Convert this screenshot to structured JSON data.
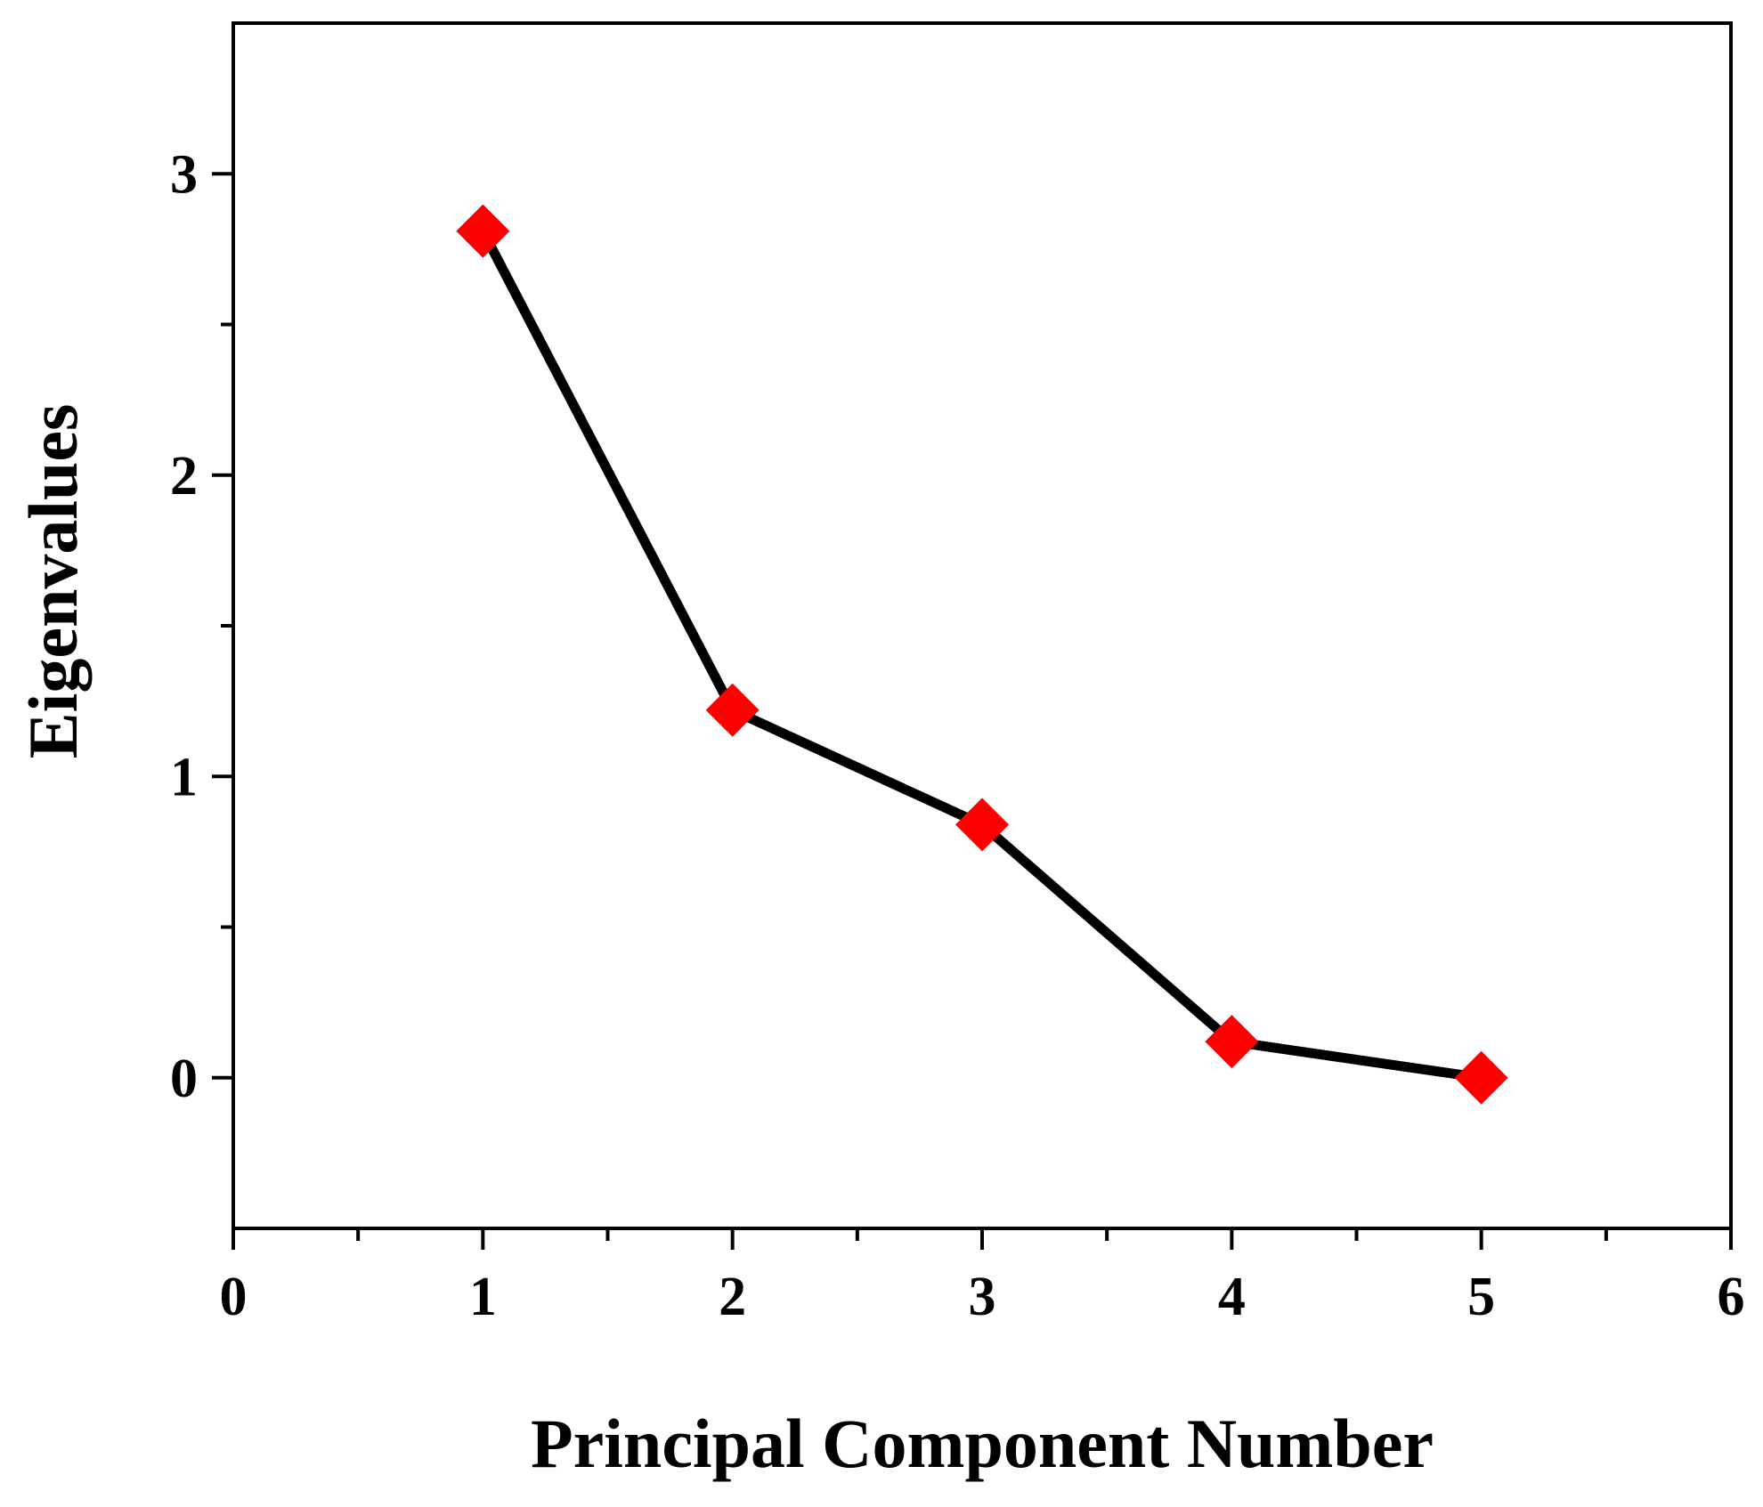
{
  "chart_data": {
    "type": "line",
    "title": "",
    "xlabel": "Principal Component Number",
    "ylabel": "Eigenvalues",
    "xlim": [
      0,
      6
    ],
    "ylim": [
      -0.5,
      3.5
    ],
    "x_ticks": [
      0,
      1,
      2,
      3,
      4,
      5,
      6
    ],
    "y_ticks": [
      0,
      1,
      2,
      3
    ],
    "grid": false,
    "legend": "none",
    "series": [
      {
        "x": [
          1,
          2,
          3,
          4,
          5
        ],
        "values": [
          2.81,
          1.22,
          0.84,
          0.12,
          0.0
        ],
        "line_color": "#000000",
        "marker": "diamond",
        "marker_color": "#ff0000"
      }
    ]
  }
}
